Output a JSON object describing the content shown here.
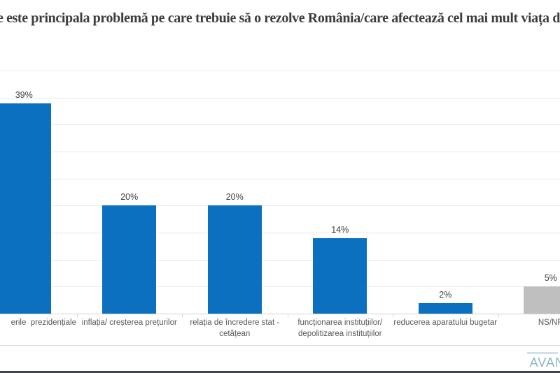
{
  "page": {
    "bottom_rule_color": "#43454e"
  },
  "logo": {
    "visible_text": "AVAN",
    "color": "#8db5c7"
  },
  "chart_data": {
    "type": "bar",
    "title": "e este principala problemă pe care trebuie să o rezolve România/care afectează cel mai mult viața dvs.?",
    "title_note": "question cropped at left edge of screenshot",
    "categories": [
      "erile  prezidențiale",
      "inflația/ creșterea prețurilor",
      "relația de încredere stat -\ncetățean",
      "funcționarea instituțiilor/\ndepolitizarea instituțiilor",
      "reducerea aparatului bugetar",
      "NS/NR"
    ],
    "values": [
      39,
      20,
      20,
      14,
      2,
      5
    ],
    "value_labels": [
      "39%",
      "20%",
      "20%",
      "14%",
      "2%",
      "5%"
    ],
    "bar_colors": [
      "#0C70C0",
      "#0C70C0",
      "#0C70C0",
      "#0C70C0",
      "#0C70C0",
      "#BFBFBF"
    ],
    "xlabel": "",
    "ylabel": "",
    "ylim": [
      0,
      45
    ],
    "gridline_step": 5,
    "grid": true,
    "legend": false,
    "y_axis_labels_visible": false
  }
}
